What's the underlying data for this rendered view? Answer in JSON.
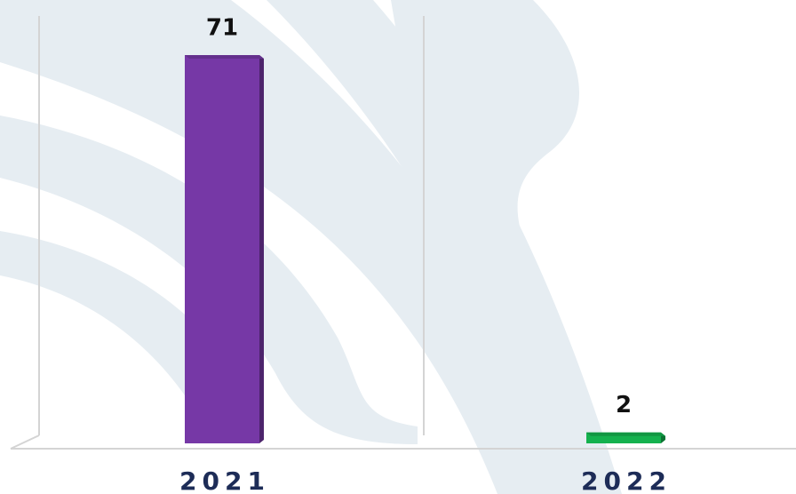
{
  "chart_data": {
    "type": "bar",
    "categories": [
      "2021",
      "2022"
    ],
    "values": [
      71,
      2
    ],
    "colors": [
      "#7638a6",
      "#14b14e"
    ]
  }
}
